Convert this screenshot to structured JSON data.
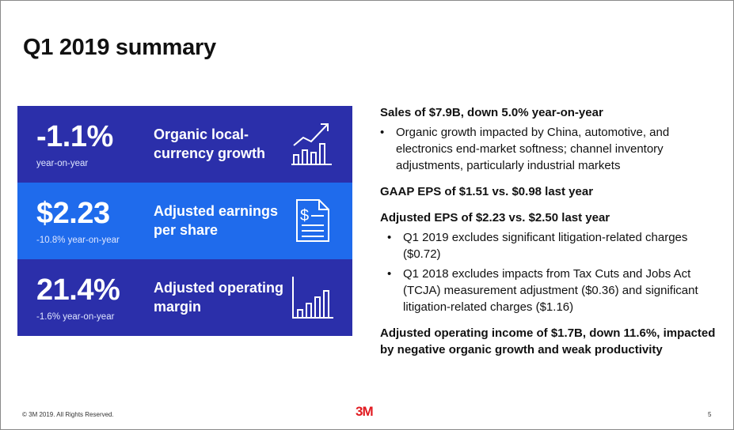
{
  "title": "Q1 2019 summary",
  "kpis": [
    {
      "value": "-1.1%",
      "sub": "year-on-year",
      "label": "Organic local-currency growth",
      "icon": "growth-chart-icon"
    },
    {
      "value": "$2.23",
      "sub": "-10.8% year-on-year",
      "label": "Adjusted earnings per share",
      "icon": "dollar-document-icon"
    },
    {
      "value": "21.4%",
      "sub": "-1.6% year-on-year",
      "label": "Adjusted operating margin",
      "icon": "bar-chart-icon"
    }
  ],
  "right": {
    "sales_heading": "Sales of $7.9B, down 5.0% year-on-year",
    "sales_bullet": "Organic growth impacted by China, automotive, and electronics end-market softness; channel inventory adjustments, particularly industrial markets",
    "gaap": "GAAP EPS of $1.51 vs. $0.98 last year",
    "adj_eps": "Adjusted EPS of $2.23 vs. $2.50 last year",
    "bullets": [
      "Q1 2019 excludes significant litigation-related charges ($0.72)",
      "Q1 2018 excludes impacts from Tax Cuts and Jobs Act (TCJA) measurement adjustment ($0.36) and significant litigation-related charges ($1.16)"
    ],
    "op_income": "Adjusted operating income of $1.7B, down 11.6%, impacted by negative organic growth and weak productivity"
  },
  "footer": {
    "copyright": "© 3M 2019. All Rights Reserved.",
    "logo": "3M",
    "page": "5"
  }
}
